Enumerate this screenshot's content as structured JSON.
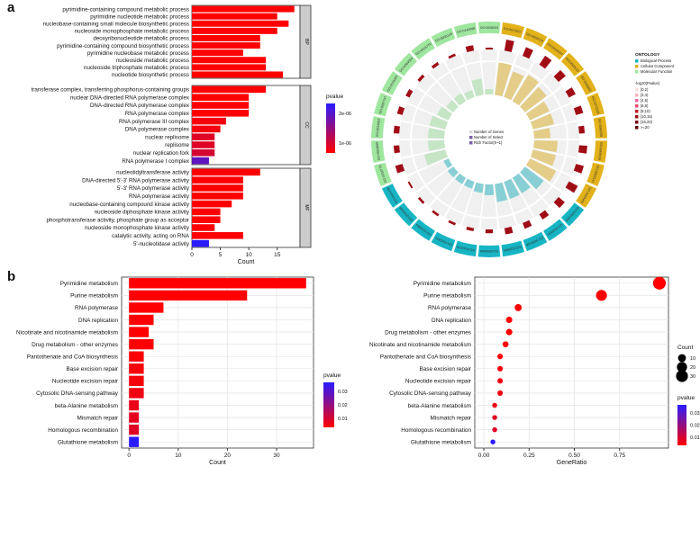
{
  "panel_labels": {
    "a": "a",
    "b": "b"
  },
  "colors": {
    "high": "#ff0000",
    "low": "#2a1cff",
    "bp": "#e3b21a",
    "cc": "#17b5c4",
    "mf": "#9fe69f",
    "ring_bar": "#a00d16",
    "strip": "#cccccc"
  },
  "chart_data": [
    {
      "type": "bar",
      "orientation": "horizontal",
      "facets": [
        "BP",
        "CC",
        "MF"
      ],
      "xlabel": "Count",
      "xlim": [
        0,
        19
      ],
      "xticks": [
        "0",
        "5",
        "10",
        "15"
      ],
      "legend_title": "pvalue",
      "legend_ticks": [
        "1e-06",
        "2e-06"
      ],
      "categories": {
        "BP": [
          "pyrimidine-containing compound metabolic process",
          "pyrimidine nucleotide metabolic process",
          "nucleobase-containing small molecule biosynthetic process",
          "nucleoside monophosphate metabolic process",
          "deoxyribonucleotide metabolic process",
          "pyrimidine-containing compound biosynthetic process",
          "pyrimidine nucleobase metabolic process",
          "nucleoside metabolic process",
          "nucleoside triphosphate metabolic process",
          "nucleotide biosynthetic process"
        ],
        "CC": [
          "transferase complex, transferring phosphorus-containing groups",
          "nuclear DNA-directed RNA polymerase complex",
          "DNA-directed RNA polymerase complex",
          "RNA polymerase complex",
          "RNA polymerase III complex",
          "DNA polymerase complex",
          "nuclear replisome",
          "replisome",
          "nuclear replication fork",
          "RNA polymerase I complex"
        ],
        "MF": [
          "nucleotidyltransferase activity",
          "DNA-directed 5'-3' RNA polymerase activity",
          "5'-3' RNA polymerase activity",
          "RNA polymerase activity",
          "nucleobase-containing compound kinase activity",
          "nucleoside diphosphate kinase activity",
          "phosphotransferase activity, phosphate group as acceptor",
          "nucleoside monophosphate kinase activity",
          "catalytic activity, acting on RNA",
          "5'-nucleotidase activity"
        ]
      },
      "values": {
        "BP": [
          18,
          15,
          17,
          15,
          12,
          12,
          9,
          13,
          13,
          16
        ],
        "CC": [
          13,
          10,
          10,
          10,
          6,
          5,
          4,
          4,
          4,
          3
        ],
        "MF": [
          12,
          9,
          9,
          9,
          7,
          5,
          5,
          4,
          9,
          3
        ]
      },
      "pvalue_level": {
        "BP": [
          0,
          0,
          0,
          0,
          0,
          0,
          0,
          0,
          0,
          0
        ],
        "CC": [
          0,
          0,
          0,
          0,
          0.05,
          0.05,
          0.15,
          0.15,
          0.2,
          0.75
        ],
        "MF": [
          0,
          0,
          0,
          0,
          0,
          0,
          0,
          0,
          0,
          1
        ]
      }
    },
    {
      "type": "circular",
      "title": "ONTOLOGY",
      "legend_ontology": [
        "Biological Process",
        "Cellular Component",
        "Molecular Function"
      ],
      "legend_scale_title": "-log10(Pvalue)",
      "legend_scale": [
        "[0,2)",
        "[2,4)",
        "[4,6)",
        "[6,8)",
        "[8,10)",
        "[10,15)",
        "[15,20)",
        ">=20"
      ],
      "center_legend": [
        "Number of Genes",
        "Number of Select",
        "Rich Factor(0~1)"
      ],
      "sector_ids": [
        "GO:0072527",
        "GO:0009218",
        "GO:0034654",
        "GO:0009123",
        "GO:0009262",
        "GO:0072528",
        "GO:0006206",
        "GO:0009116",
        "GO:0009141",
        "GO:0009165",
        "GO:0061695",
        "GO:0016591",
        "GO:0000428",
        "GO:0030880",
        "GO:0005666",
        "GO:0042575",
        "GO:0043601",
        "GO:0030894",
        "GO:0043596",
        "GO:0005736",
        "GO:0016779",
        "GO:0003899",
        "GO:0034062",
        "GO:0097747",
        "GO:0019205",
        "GO:0004550",
        "GO:0016776",
        "GO:0050145",
        "GO:0140098",
        "GO:0008253"
      ],
      "sector_group": [
        "BP",
        "BP",
        "BP",
        "BP",
        "BP",
        "BP",
        "BP",
        "BP",
        "BP",
        "BP",
        "CC",
        "CC",
        "CC",
        "CC",
        "CC",
        "CC",
        "CC",
        "CC",
        "CC",
        "CC",
        "MF",
        "MF",
        "MF",
        "MF",
        "MF",
        "MF",
        "MF",
        "MF",
        "MF",
        "MF"
      ],
      "genes": [
        18,
        15,
        17,
        15,
        12,
        12,
        9,
        13,
        13,
        16,
        13,
        10,
        10,
        10,
        6,
        5,
        4,
        4,
        4,
        3,
        12,
        9,
        9,
        9,
        7,
        5,
        5,
        4,
        9,
        3
      ]
    },
    {
      "type": "bar",
      "orientation": "horizontal",
      "xlabel": "Count",
      "xlim": [
        -1.5,
        37.5
      ],
      "xticks": [
        0,
        10,
        20,
        30
      ],
      "legend_title": "pvalue",
      "legend_ticks": [
        "0.01",
        "0.02",
        "0.03"
      ],
      "categories": [
        "Pyrimidine metabolism",
        "Purine metabolism",
        "RNA polymerase",
        "DNA replication",
        "Nicotinate and nicotinamide metabolism",
        "Drug metabolism - other enzymes",
        "Pantothenate and CoA biosynthesis",
        "Base excision repair",
        "Nucleotide excision repair",
        "Cytosolic DNA-sensing pathway",
        "beta-Alanine metabolism",
        "Mismatch repair",
        "Homologous recombination",
        "Glutathione metabolism"
      ],
      "values": [
        36,
        24,
        7,
        5,
        4,
        5,
        3,
        3,
        3,
        3,
        2,
        2,
        2,
        2
      ],
      "pvalues": [
        0.0001,
        0.0001,
        0.0001,
        0.0002,
        0.0002,
        0.0005,
        0.001,
        0.0015,
        0.002,
        0.003,
        0.004,
        0.005,
        0.006,
        0.04
      ]
    },
    {
      "type": "scatter",
      "xlabel": "GeneRatio",
      "xlim": [
        -0.05,
        1.02
      ],
      "xticks": [
        "0.00",
        "0.25",
        "0.50",
        "0.75"
      ],
      "legend_size_title": "Count",
      "legend_sizes": [
        10,
        20,
        30
      ],
      "legend_title": "pvalue",
      "legend_ticks": [
        "0.01",
        "0.02",
        "0.03"
      ],
      "categories": [
        "Pyrimidine metabolism",
        "Purine metabolism",
        "RNA polymerase",
        "DNA replication",
        "Drug metabolism - other enzymes",
        "Nicotinate and nicotinamide metabolism",
        "Pantothenate and CoA biosynthesis",
        "Base excision repair",
        "Nucleotide excision repair",
        "Cytosolic DNA-sensing pathway",
        "beta-Alanine metabolism",
        "Mismatch repair",
        "Homologous recombination",
        "Glutathione metabolism"
      ],
      "x": [
        0.97,
        0.65,
        0.19,
        0.14,
        0.14,
        0.12,
        0.09,
        0.09,
        0.09,
        0.09,
        0.06,
        0.06,
        0.06,
        0.05
      ],
      "count": [
        36,
        24,
        7,
        5,
        5,
        4,
        3,
        3,
        3,
        3,
        2,
        2,
        2,
        2
      ],
      "pvalues": [
        0.0001,
        0.0001,
        0.0001,
        0.0002,
        0.0005,
        0.0002,
        0.001,
        0.0015,
        0.002,
        0.003,
        0.004,
        0.005,
        0.006,
        0.04
      ]
    }
  ]
}
